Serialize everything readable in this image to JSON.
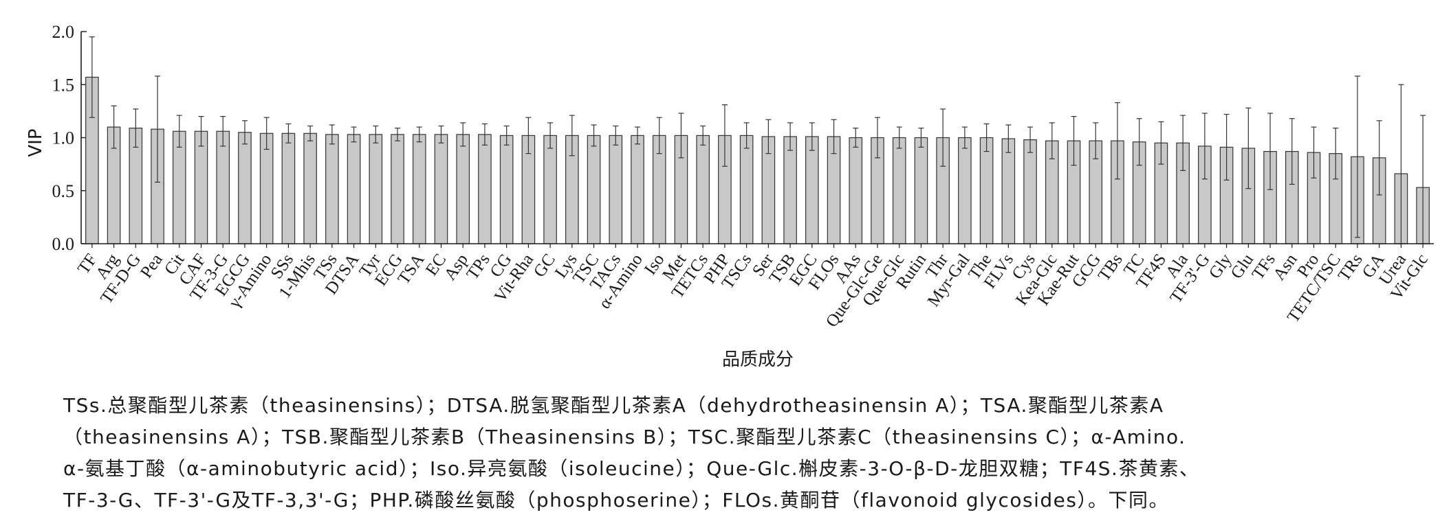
{
  "chart_data": {
    "type": "bar",
    "ylabel": "VIP",
    "xlabel": "品质成分",
    "ylim": [
      0,
      2.0
    ],
    "yticks": [
      "0.0",
      "0.5",
      "1.0",
      "1.5",
      "2.0"
    ],
    "error_bars": true,
    "grid": false,
    "categories": [
      "TF",
      "Arg",
      "TF-D-G",
      "Pea",
      "Cit",
      "CAF",
      "TF-3-G",
      "EGCG",
      "γ-Amino",
      "SSs",
      "1-Mhis",
      "TSs",
      "DTSA",
      "Tyr",
      "ECG",
      "TSA",
      "EC",
      "Asp",
      "TPs",
      "CG",
      "Vit-Rha",
      "GC",
      "Lys",
      "TSC",
      "TACs",
      "α-Amino",
      "Iso",
      "Met",
      "TETCs",
      "PHP",
      "TSCs",
      "Ser",
      "TSB",
      "EGC",
      "FLOs",
      "AAs",
      "Que-Glc-Ge",
      "Que-Glc",
      "Rutin",
      "Thr",
      "Myr-Gal",
      "The",
      "FLVs",
      "Cys",
      "Kea-Glc",
      "Kae-Rut",
      "GCG",
      "TBs",
      "TC",
      "TF4S",
      "Ala",
      "TF-3'-G",
      "Gly",
      "Glu",
      "TFs",
      "Asn",
      "Pro",
      "TETC/TSC",
      "TRs",
      "GA",
      "Urea",
      "Vit-Glc"
    ],
    "values": [
      1.57,
      1.1,
      1.09,
      1.08,
      1.06,
      1.06,
      1.06,
      1.05,
      1.04,
      1.04,
      1.04,
      1.03,
      1.03,
      1.03,
      1.03,
      1.03,
      1.03,
      1.03,
      1.03,
      1.02,
      1.02,
      1.02,
      1.02,
      1.02,
      1.02,
      1.02,
      1.02,
      1.02,
      1.02,
      1.02,
      1.02,
      1.01,
      1.01,
      1.01,
      1.01,
      1.0,
      1.0,
      1.0,
      1.0,
      1.0,
      1.0,
      1.0,
      0.99,
      0.98,
      0.97,
      0.97,
      0.97,
      0.97,
      0.96,
      0.95,
      0.95,
      0.92,
      0.91,
      0.9,
      0.87,
      0.87,
      0.86,
      0.85,
      0.82,
      0.81,
      0.66,
      0.53
    ],
    "errors": [
      0.38,
      0.2,
      0.18,
      0.5,
      0.15,
      0.14,
      0.14,
      0.11,
      0.15,
      0.09,
      0.07,
      0.09,
      0.07,
      0.08,
      0.06,
      0.07,
      0.08,
      0.11,
      0.1,
      0.09,
      0.17,
      0.12,
      0.19,
      0.1,
      0.09,
      0.08,
      0.17,
      0.21,
      0.09,
      0.29,
      0.12,
      0.16,
      0.13,
      0.13,
      0.16,
      0.09,
      0.19,
      0.1,
      0.09,
      0.27,
      0.1,
      0.13,
      0.13,
      0.12,
      0.17,
      0.23,
      0.17,
      0.36,
      0.22,
      0.2,
      0.26,
      0.31,
      0.31,
      0.38,
      0.36,
      0.31,
      0.24,
      0.24,
      0.76,
      0.35,
      0.84,
      0.68
    ]
  },
  "caption": {
    "lines": [
      "TSs.总聚酯型儿茶素（theasinensins）；DTSA.脱氢聚酯型儿茶素A（dehydrotheasinensin A）；TSA.聚酯型儿茶素A",
      "（theasinensins A）；TSB.聚酯型儿茶素B（Theasinensins B）；TSC.聚酯型儿茶素C（theasinensins C）；α-Amino.",
      "α-氨基丁酸（α-aminobutyric acid）；Iso.异亮氨酸（isoleucine）；Que-Glc.槲皮素-3-O-β-D-龙胆双糖；TF4S.茶黄素、",
      "TF-3-G、TF-3'-G及TF-3,3'-G；PHP.磷酸丝氨酸（phosphoserine）；FLOs.黄酮苷（flavonoid glycosides）。下同。"
    ]
  },
  "colors": {
    "bar_fill": "#c8c8c8",
    "bar_stroke": "#333333",
    "axis": "#1a1a1a"
  }
}
